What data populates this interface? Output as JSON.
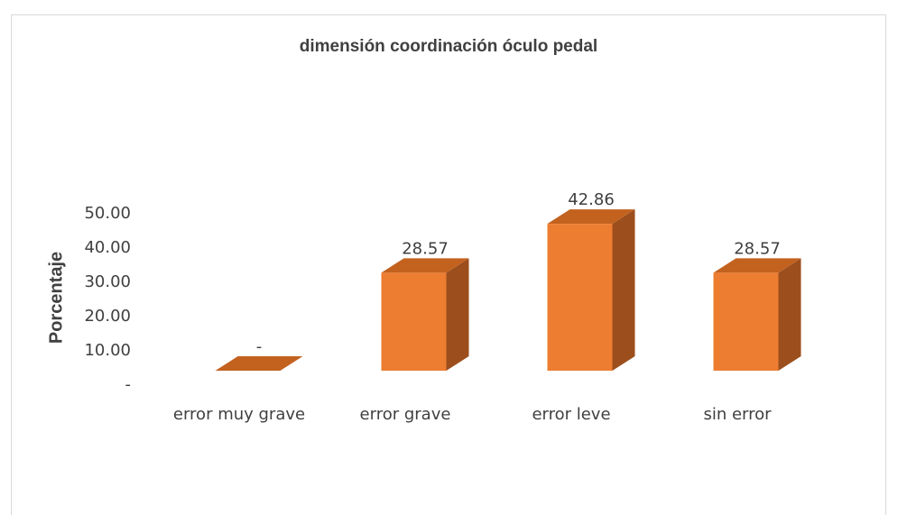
{
  "chart_data": {
    "type": "bar3d",
    "title": "dimensión coordinación óculo pedal",
    "ylabel": "Porcentaje",
    "categories": [
      "error muy grave",
      "error grave",
      "error leve",
      "sin error"
    ],
    "values": [
      0,
      28.57,
      42.86,
      28.57
    ],
    "value_labels": [
      "-",
      "28.57",
      "42.86",
      "28.57"
    ],
    "color": "#ed7d31",
    "ylim": [
      0,
      50
    ],
    "yticks": [
      {
        "value": 0,
        "label": "-"
      },
      {
        "value": 10,
        "label": "10.00"
      },
      {
        "value": 20,
        "label": "20.00"
      },
      {
        "value": 30,
        "label": "30.00"
      },
      {
        "value": 40,
        "label": "40.00"
      },
      {
        "value": 50,
        "label": "50.00"
      }
    ]
  }
}
